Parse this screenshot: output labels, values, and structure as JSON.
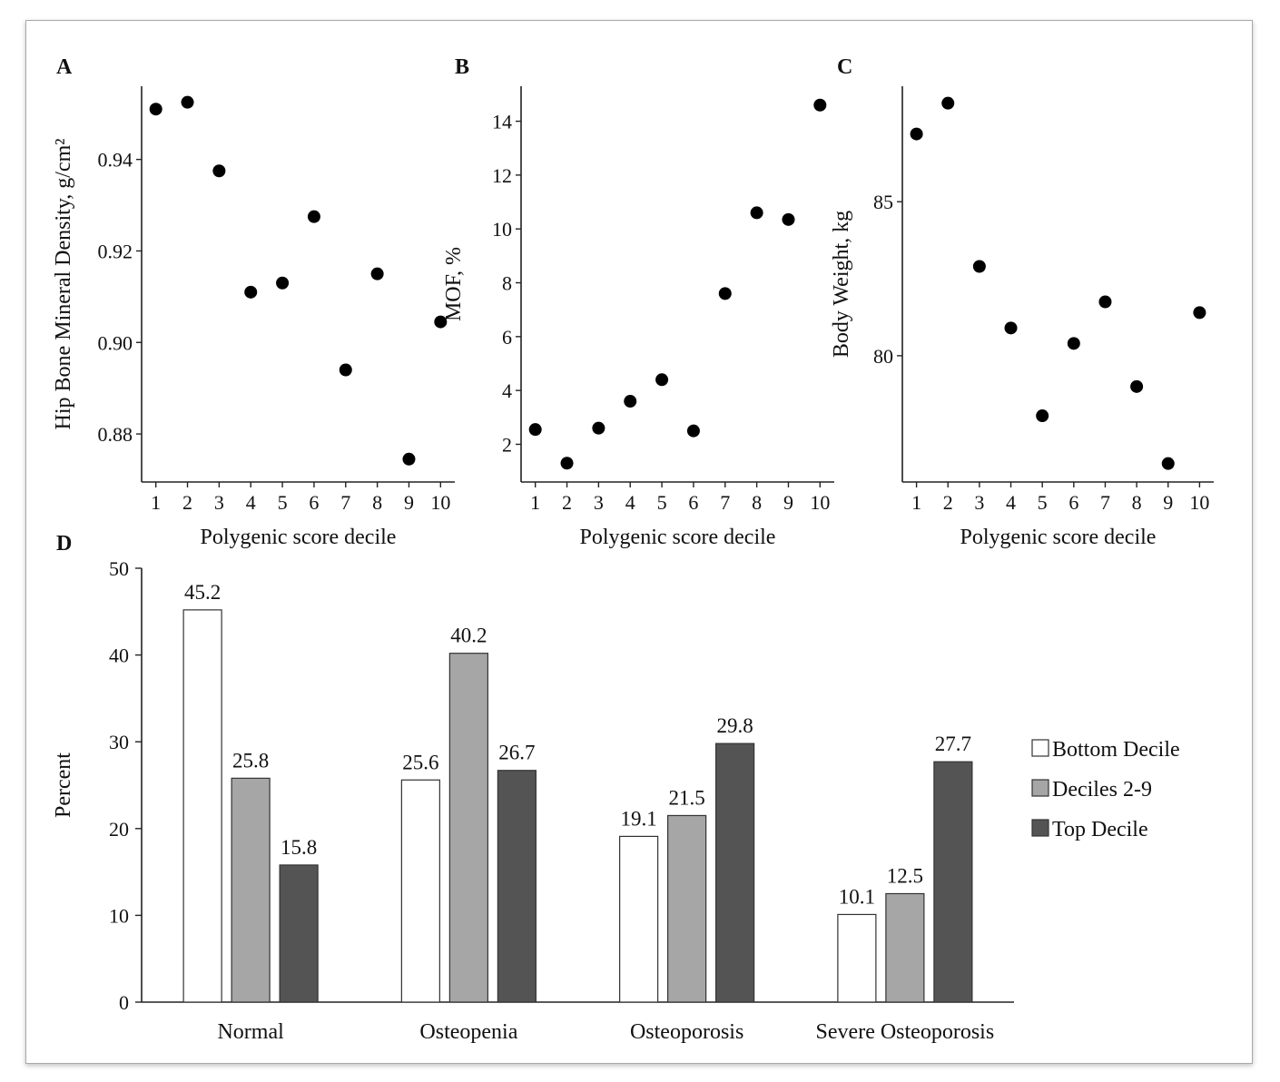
{
  "chart_data": [
    {
      "panel": "A",
      "type": "scatter",
      "xlabel": "Polygenic score decile",
      "ylabel": "Hip Bone Mineral Density, g/cm²",
      "x": [
        1,
        2,
        3,
        4,
        5,
        6,
        7,
        8,
        9,
        10
      ],
      "y": [
        0.951,
        0.9525,
        0.9375,
        0.911,
        0.913,
        0.9275,
        0.894,
        0.915,
        0.8745,
        0.9045
      ],
      "xticks": [
        "1",
        "2",
        "3",
        "4",
        "5",
        "6",
        "7",
        "8",
        "9",
        "10"
      ],
      "yticks": [
        "0.88",
        "0.90",
        "0.92",
        "0.94"
      ],
      "ytick_values": [
        0.88,
        0.9,
        0.92,
        0.94
      ],
      "ylim": [
        0.8695,
        0.956
      ],
      "xlim": [
        0.55,
        10.45
      ]
    },
    {
      "panel": "B",
      "type": "scatter",
      "xlabel": "Polygenic score decile",
      "ylabel": "MOF, %",
      "x": [
        1,
        2,
        3,
        4,
        5,
        6,
        7,
        8,
        9,
        10
      ],
      "y": [
        2.55,
        1.3,
        2.6,
        3.6,
        4.4,
        2.5,
        7.6,
        10.6,
        10.35,
        14.6
      ],
      "xticks": [
        "1",
        "2",
        "3",
        "4",
        "5",
        "6",
        "7",
        "8",
        "9",
        "10"
      ],
      "yticks": [
        "2",
        "4",
        "6",
        "8",
        "10",
        "12",
        "14"
      ],
      "ytick_values": [
        2,
        4,
        6,
        8,
        10,
        12,
        14
      ],
      "ylim": [
        0.6,
        15.3
      ],
      "xlim": [
        0.55,
        10.45
      ]
    },
    {
      "panel": "C",
      "type": "scatter",
      "xlabel": "Polygenic score decile",
      "ylabel": "Body Weight, kg",
      "x": [
        1,
        2,
        3,
        4,
        5,
        6,
        7,
        8,
        9,
        10
      ],
      "y": [
        87.2,
        88.2,
        82.9,
        80.9,
        78.05,
        80.4,
        81.75,
        79.0,
        76.5,
        81.4
      ],
      "xticks": [
        "1",
        "2",
        "3",
        "4",
        "5",
        "6",
        "7",
        "8",
        "9",
        "10"
      ],
      "yticks": [
        "80",
        "85"
      ],
      "ytick_values": [
        80,
        85
      ],
      "ylim": [
        75.9,
        88.75
      ],
      "xlim": [
        0.55,
        10.45
      ]
    },
    {
      "panel": "D",
      "type": "bar",
      "ylabel": "Percent",
      "categories": [
        "Normal",
        "Osteopenia",
        "Osteoporosis",
        "Severe Osteoporosis"
      ],
      "series": [
        {
          "name": "Bottom Decile",
          "values": [
            45.2,
            25.6,
            19.1,
            10.1
          ],
          "color": "#ffffff"
        },
        {
          "name": "Deciles 2-9",
          "values": [
            25.8,
            40.2,
            21.5,
            12.5
          ],
          "color": "#a6a6a6"
        },
        {
          "name": "Top Decile",
          "values": [
            15.8,
            26.7,
            29.8,
            27.7
          ],
          "color": "#545454"
        }
      ],
      "yticks": [
        "0",
        "10",
        "20",
        "30",
        "40",
        "50"
      ],
      "ytick_values": [
        0,
        10,
        20,
        30,
        40,
        50
      ],
      "ylim": [
        0,
        50
      ],
      "legend": "right"
    }
  ]
}
